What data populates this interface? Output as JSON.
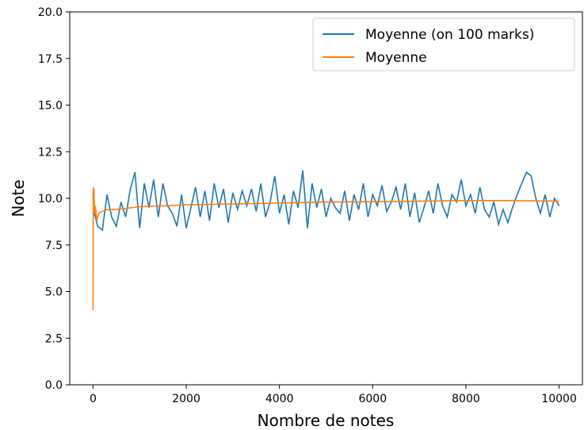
{
  "chart_data": {
    "type": "line",
    "xlabel": "Nombre de notes",
    "ylabel": "Note",
    "xlim": [
      -500,
      10500
    ],
    "ylim": [
      0,
      20
    ],
    "xticks": [
      0,
      2000,
      4000,
      6000,
      8000,
      10000
    ],
    "yticks": [
      {
        "value": 0,
        "label": "0.0"
      },
      2.5,
      {
        "value": 5,
        "label": "5.0"
      },
      7.5,
      {
        "value": 10,
        "label": "10.0"
      },
      12.5,
      {
        "value": 15,
        "label": "15.0"
      },
      17.5,
      {
        "value": 20,
        "label": "20.0"
      }
    ],
    "legend": "upper right",
    "series": [
      {
        "name": "Moyenne (on 100 marks)",
        "color": "#1f77b4",
        "x": [
          0,
          100,
          200,
          300,
          400,
          500,
          600,
          700,
          800,
          900,
          1000,
          1100,
          1200,
          1300,
          1400,
          1500,
          1600,
          1700,
          1800,
          1900,
          2000,
          2100,
          2200,
          2300,
          2400,
          2500,
          2600,
          2700,
          2800,
          2900,
          3000,
          3100,
          3200,
          3300,
          3400,
          3500,
          3600,
          3700,
          3800,
          3900,
          4000,
          4100,
          4200,
          4300,
          4400,
          4500,
          4600,
          4700,
          4800,
          4900,
          5000,
          5100,
          5200,
          5300,
          5400,
          5500,
          5600,
          5700,
          5800,
          5900,
          6000,
          6100,
          6200,
          6300,
          6400,
          6500,
          6600,
          6700,
          6800,
          6900,
          7000,
          7100,
          7200,
          7300,
          7400,
          7500,
          7600,
          7700,
          7800,
          7900,
          8000,
          8100,
          8200,
          8300,
          8400,
          8500,
          8600,
          8700,
          8800,
          8900,
          9000,
          9100,
          9200,
          9300,
          9400,
          9500,
          9600,
          9700,
          9800,
          9900,
          10000
        ],
        "values": [
          9.5,
          8.5,
          8.3,
          10.2,
          9.0,
          8.5,
          9.8,
          9.0,
          10.5,
          11.4,
          8.4,
          10.8,
          9.5,
          11.0,
          9.0,
          10.8,
          9.6,
          9.2,
          8.5,
          10.2,
          8.4,
          9.5,
          10.6,
          9.0,
          10.4,
          8.8,
          10.8,
          9.5,
          10.5,
          8.7,
          10.3,
          9.4,
          10.4,
          9.6,
          10.5,
          9.3,
          10.8,
          9.0,
          9.8,
          11.2,
          9.2,
          10.2,
          8.6,
          10.4,
          9.5,
          11.5,
          8.4,
          10.8,
          9.5,
          10.5,
          9.0,
          10.0,
          9.5,
          9.2,
          10.4,
          8.8,
          10.2,
          9.4,
          10.8,
          9.0,
          10.2,
          9.6,
          10.7,
          9.3,
          9.8,
          10.6,
          9.4,
          10.8,
          9.0,
          10.3,
          8.7,
          9.5,
          10.4,
          9.2,
          10.8,
          9.6,
          9.0,
          10.2,
          9.8,
          11.0,
          9.6,
          10.2,
          9.2,
          10.6,
          9.4,
          9.0,
          9.8,
          8.6,
          9.4,
          8.7,
          9.5,
          10.2,
          10.8,
          11.4,
          11.2,
          10.0,
          9.2,
          10.2,
          9.0,
          10.0,
          9.6
        ]
      },
      {
        "name": "Moyenne",
        "color": "#ff7f0e",
        "x": [
          0,
          5,
          10,
          20,
          30,
          50,
          80,
          120,
          200,
          300,
          500,
          1000,
          1500,
          2000,
          3000,
          4000,
          5000,
          6000,
          7000,
          8000,
          9000,
          10000
        ],
        "values": [
          4.0,
          10.6,
          9.0,
          10.5,
          9.2,
          9.6,
          8.8,
          9.2,
          9.3,
          9.4,
          9.4,
          9.55,
          9.6,
          9.65,
          9.7,
          9.75,
          9.8,
          9.82,
          9.85,
          9.88,
          9.88,
          9.85
        ]
      }
    ]
  }
}
